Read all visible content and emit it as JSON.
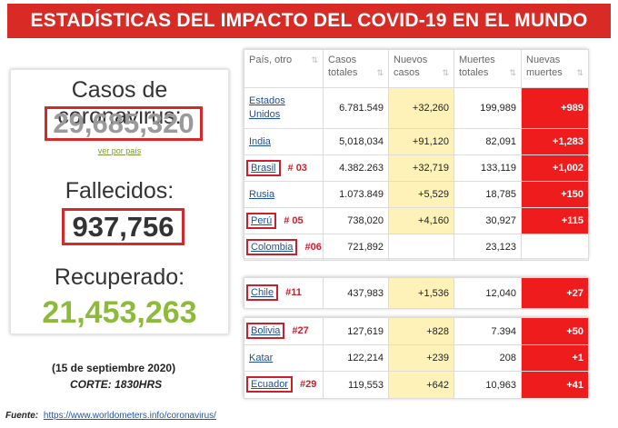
{
  "banner": "ESTADÍSTICAS DEL IMPACTO DEL COVID-19 EN EL MUNDO",
  "summary": {
    "cases_label": "Casos de coronavirus:",
    "cases_value": "29,685,320",
    "cases_link": "ver por país",
    "deaths_label": "Fallecidos:",
    "deaths_value": "937,756",
    "recovered_label": "Recuperado:",
    "recovered_value": "21,453,263"
  },
  "date_text": "(15 de septiembre  2020)",
  "corte_text": "CORTE: 1830HRS",
  "source": {
    "label": "Fuente:",
    "url": "https://www.worldometers.info/coronavirus/"
  },
  "headers": {
    "country": "País, otro",
    "total_cases": "Casos totales",
    "new_cases": "Nuevos casos",
    "total_deaths": "Muertes totales",
    "new_deaths": "Nuevas muertes"
  },
  "sort_icon": "⇅",
  "table_top": [
    {
      "country": "Estados Unidos",
      "rank": "",
      "total_cases": "6.781.549",
      "new_cases": "+32,260",
      "total_deaths": "199,989",
      "new_deaths": "+989"
    },
    {
      "country": "India",
      "rank": "",
      "total_cases": "5,018,034",
      "new_cases": "+91,120",
      "total_deaths": "82,091",
      "new_deaths": "+1,283"
    },
    {
      "country": "Brasil",
      "rank": "# 03",
      "total_cases": "4.382.263",
      "new_cases": "+32,719",
      "total_deaths": "133,119",
      "new_deaths": "+1,002"
    },
    {
      "country": "Rusia",
      "rank": "",
      "total_cases": "1.073.849",
      "new_cases": "+5,529",
      "total_deaths": "18,785",
      "new_deaths": "+150"
    },
    {
      "country": "Perú",
      "rank": "# 05",
      "total_cases": "738,020",
      "new_cases": "+4,160",
      "total_deaths": "30,927",
      "new_deaths": "+115"
    },
    {
      "country": "Colombia",
      "rank": "#06",
      "total_cases": "721,892",
      "new_cases": "",
      "total_deaths": "23,123",
      "new_deaths": ""
    }
  ],
  "table_chile": [
    {
      "country": "Chile",
      "rank": "#11",
      "total_cases": "437,983",
      "new_cases": "+1,536",
      "total_deaths": "12,040",
      "new_deaths": "+27"
    }
  ],
  "table_bottom": [
    {
      "country": "Bolivia",
      "rank": "#27",
      "total_cases": "127,619",
      "new_cases": "+828",
      "total_deaths": "7.394",
      "new_deaths": "+50"
    },
    {
      "country": "Katar",
      "rank": "",
      "total_cases": "122,214",
      "new_cases": "+239",
      "total_deaths": "208",
      "new_deaths": "+1"
    },
    {
      "country": "Ecuador",
      "rank": "#29",
      "total_cases": "119,553",
      "new_cases": "+642",
      "total_deaths": "10,963",
      "new_deaths": "+41"
    }
  ],
  "boxed_countries": [
    "Brasil",
    "Perú",
    "Colombia",
    "Chile",
    "Bolivia",
    "Ecuador"
  ],
  "colors": {
    "banner": "#d92b26",
    "highlight_box": "#d42a2a",
    "new_cases_bg": "#fff2b8",
    "new_deaths_bg": "#ee1c1c",
    "recovered": "#8dba3a"
  }
}
